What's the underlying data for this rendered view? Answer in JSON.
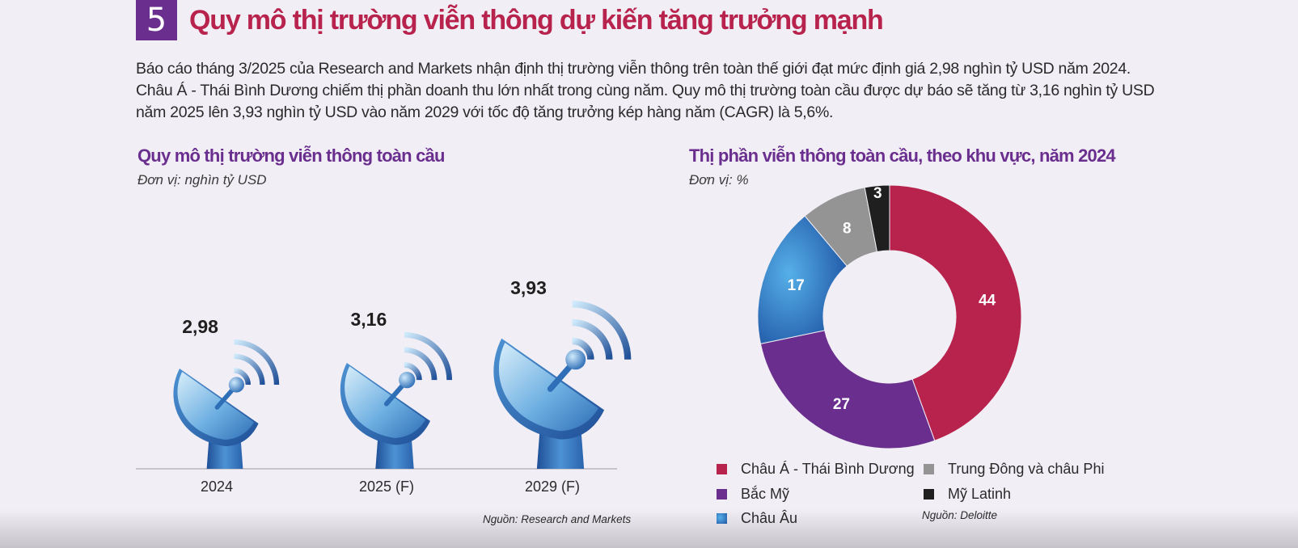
{
  "section_number": "5",
  "title": "Quy mô thị trường viễn thông dự kiến tăng trưởng mạnh",
  "intro_lines": [
    "Báo cáo tháng 3/2025 của Research and Markets nhận định thị trường viễn thông trên toàn thế giới đạt mức định giá 2,98 nghìn tỷ USD năm 2024.",
    "Châu Á - Thái Bình Dương chiếm thị phần doanh thu lớn nhất trong cùng năm. Quy mô thị trường toàn cầu được dự báo sẽ tăng từ 3,16 nghìn tỷ USD",
    "năm 2025 lên 3,93 nghìn tỷ USD vào năm 2029 với tốc độ tăng trưởng kép hàng năm (CAGR) là 5,6%."
  ],
  "chart_data": [
    {
      "type": "bar",
      "title": "Quy mô thị trường viễn thông toàn cầu",
      "unit": "Đơn vị: nghìn tỷ USD",
      "categories": [
        "2024",
        "2025 (F)",
        "2029 (F)"
      ],
      "values": [
        2.98,
        3.16,
        3.93
      ],
      "value_labels": [
        "2,98",
        "3,16",
        "3,93"
      ],
      "source": "Nguồn: Research and Markets",
      "icon": "satellite-dish-icon",
      "colors": {
        "dish": "#2f6fb7",
        "light": "#bfe3f7",
        "dark": "#1f4f97"
      }
    },
    {
      "type": "pie",
      "title": "Thị phần viễn thông toàn cầu, theo khu vực, năm 2024",
      "unit": "Đơn vị: %",
      "donut": true,
      "slices": [
        {
          "label": "Châu Á - Thái Bình Dương",
          "value": 44,
          "color": "#b8234d"
        },
        {
          "label": "Bắc Mỹ",
          "value": 27,
          "color": "#6a2f8e"
        },
        {
          "label": "Châu Âu",
          "value": 17,
          "color": "#2c6fc0"
        },
        {
          "label": "Trung Đông và châu Phi",
          "value": 8,
          "color": "#949494"
        },
        {
          "label": "Mỹ Latinh",
          "value": 3,
          "color": "#1f1f1f"
        }
      ],
      "legend_placement": "bottom",
      "source": "Nguồn: Deloitte"
    }
  ]
}
